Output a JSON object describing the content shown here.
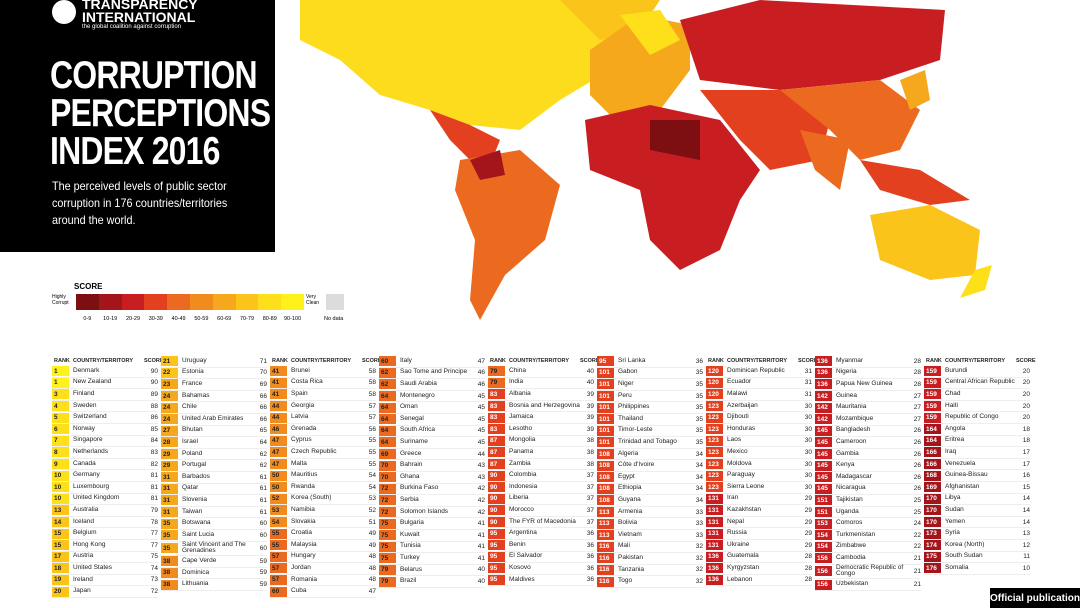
{
  "header": {
    "logo_name": "TRANSPARENCY INTERNATIONAL",
    "logo_tagline": "the global coalition against corruption",
    "title_lines": [
      "CORRUPTION",
      "PERCEPTIONS",
      "INDEX 2016"
    ],
    "subtitle": "The perceived levels of public sector corruption in 176 countries/territories around the world."
  },
  "legend": {
    "title": "SCORE",
    "low_label": "Highly Corrupt",
    "high_label": "Very Clean",
    "no_data": "No data",
    "no_data_color": "#dcdcdc",
    "bins": [
      {
        "label": "0-9",
        "color": "#7d0f12"
      },
      {
        "label": "10-19",
        "color": "#a3151b"
      },
      {
        "label": "20-29",
        "color": "#c81d21"
      },
      {
        "label": "30-39",
        "color": "#e2401f"
      },
      {
        "label": "40-49",
        "color": "#ec6a1f"
      },
      {
        "label": "50-59",
        "color": "#f28b1d"
      },
      {
        "label": "60-69",
        "color": "#f6a81c"
      },
      {
        "label": "70-79",
        "color": "#fac41b"
      },
      {
        "label": "80-89",
        "color": "#fde01a"
      },
      {
        "label": "90-100",
        "color": "#fff21c"
      }
    ]
  },
  "table": {
    "headers": [
      "RANK",
      "COUNTRY/TERRITORY",
      "SCORE"
    ],
    "columns": [
      [
        [
          1,
          "Denmark",
          90
        ],
        [
          1,
          "New Zealand",
          90
        ],
        [
          3,
          "Finland",
          89
        ],
        [
          4,
          "Sweden",
          88
        ],
        [
          5,
          "Switzerland",
          86
        ],
        [
          6,
          "Norway",
          85
        ],
        [
          7,
          "Singapore",
          84
        ],
        [
          8,
          "Netherlands",
          83
        ],
        [
          9,
          "Canada",
          82
        ],
        [
          10,
          "Germany",
          81
        ],
        [
          10,
          "Luxembourg",
          81
        ],
        [
          10,
          "United Kingdom",
          81
        ],
        [
          13,
          "Australia",
          79
        ],
        [
          14,
          "Iceland",
          78
        ],
        [
          15,
          "Belgium",
          77
        ],
        [
          15,
          "Hong Kong",
          77
        ],
        [
          17,
          "Austria",
          75
        ],
        [
          18,
          "United States",
          74
        ],
        [
          19,
          "Ireland",
          73
        ],
        [
          20,
          "Japan",
          72
        ]
      ],
      [
        [
          21,
          "Uruguay",
          71
        ],
        [
          22,
          "Estonia",
          70
        ],
        [
          23,
          "France",
          69
        ],
        [
          24,
          "Bahamas",
          66
        ],
        [
          24,
          "Chile",
          66
        ],
        [
          24,
          "United Arab Emirates",
          66
        ],
        [
          27,
          "Bhutan",
          65
        ],
        [
          28,
          "Israel",
          64
        ],
        [
          29,
          "Poland",
          62
        ],
        [
          29,
          "Portugal",
          62
        ],
        [
          31,
          "Barbados",
          61
        ],
        [
          31,
          "Qatar",
          61
        ],
        [
          31,
          "Slovenia",
          61
        ],
        [
          31,
          "Taiwan",
          61
        ],
        [
          35,
          "Botswana",
          60
        ],
        [
          35,
          "Saint Lucia",
          60
        ],
        [
          35,
          "Saint Vincent and The Grenadines",
          60
        ],
        [
          38,
          "Cape Verde",
          59
        ],
        [
          38,
          "Dominica",
          59
        ],
        [
          38,
          "Lithuania",
          59
        ]
      ],
      [
        [
          41,
          "Brunei",
          58
        ],
        [
          41,
          "Costa Rica",
          58
        ],
        [
          41,
          "Spain",
          58
        ],
        [
          44,
          "Georgia",
          57
        ],
        [
          44,
          "Latvia",
          57
        ],
        [
          46,
          "Grenada",
          56
        ],
        [
          47,
          "Cyprus",
          55
        ],
        [
          47,
          "Czech Republic",
          55
        ],
        [
          47,
          "Malta",
          55
        ],
        [
          50,
          "Mauritius",
          54
        ],
        [
          50,
          "Rwanda",
          54
        ],
        [
          52,
          "Korea (South)",
          53
        ],
        [
          53,
          "Namibia",
          52
        ],
        [
          54,
          "Slovakia",
          51
        ],
        [
          55,
          "Croatia",
          49
        ],
        [
          55,
          "Malaysia",
          49
        ],
        [
          57,
          "Hungary",
          48
        ],
        [
          57,
          "Jordan",
          48
        ],
        [
          57,
          "Romania",
          48
        ],
        [
          60,
          "Cuba",
          47
        ]
      ],
      [
        [
          60,
          "Italy",
          47
        ],
        [
          62,
          "Sao Tome and Principe",
          46
        ],
        [
          62,
          "Saudi Arabia",
          46
        ],
        [
          64,
          "Montenegro",
          45
        ],
        [
          64,
          "Oman",
          45
        ],
        [
          64,
          "Senegal",
          45
        ],
        [
          64,
          "South Africa",
          45
        ],
        [
          64,
          "Suriname",
          45
        ],
        [
          69,
          "Greece",
          44
        ],
        [
          70,
          "Bahrain",
          43
        ],
        [
          70,
          "Ghana",
          43
        ],
        [
          72,
          "Burkina Faso",
          42
        ],
        [
          72,
          "Serbia",
          42
        ],
        [
          72,
          "Solomon Islands",
          42
        ],
        [
          75,
          "Bulgaria",
          41
        ],
        [
          75,
          "Kuwait",
          41
        ],
        [
          75,
          "Tunisia",
          41
        ],
        [
          75,
          "Turkey",
          41
        ],
        [
          79,
          "Belarus",
          40
        ],
        [
          79,
          "Brazil",
          40
        ]
      ],
      [
        [
          79,
          "China",
          40
        ],
        [
          79,
          "India",
          40
        ],
        [
          83,
          "Albania",
          39
        ],
        [
          83,
          "Bosnia and Herzegovina",
          39
        ],
        [
          83,
          "Jamaica",
          39
        ],
        [
          83,
          "Lesotho",
          39
        ],
        [
          87,
          "Mongolia",
          38
        ],
        [
          87,
          "Panama",
          38
        ],
        [
          87,
          "Zambia",
          38
        ],
        [
          90,
          "Colombia",
          37
        ],
        [
          90,
          "Indonesia",
          37
        ],
        [
          90,
          "Liberia",
          37
        ],
        [
          90,
          "Morocco",
          37
        ],
        [
          90,
          "The FYR of Macedonia",
          37
        ],
        [
          95,
          "Argentina",
          36
        ],
        [
          95,
          "Benin",
          36
        ],
        [
          95,
          "El Salvador",
          36
        ],
        [
          95,
          "Kosovo",
          36
        ],
        [
          95,
          "Maldives",
          36
        ]
      ],
      [
        [
          95,
          "Sri Lanka",
          36
        ],
        [
          101,
          "Gabon",
          35
        ],
        [
          101,
          "Niger",
          35
        ],
        [
          101,
          "Peru",
          35
        ],
        [
          101,
          "Philippines",
          35
        ],
        [
          101,
          "Thailand",
          35
        ],
        [
          101,
          "Timor-Leste",
          35
        ],
        [
          101,
          "Trinidad and Tobago",
          35
        ],
        [
          108,
          "Algeria",
          34
        ],
        [
          108,
          "Côte d'Ivoire",
          34
        ],
        [
          108,
          "Egypt",
          34
        ],
        [
          108,
          "Ethiopia",
          34
        ],
        [
          108,
          "Guyana",
          34
        ],
        [
          113,
          "Armenia",
          33
        ],
        [
          113,
          "Bolivia",
          33
        ],
        [
          113,
          "Vietnam",
          33
        ],
        [
          116,
          "Mali",
          32
        ],
        [
          116,
          "Pakistan",
          32
        ],
        [
          116,
          "Tanzania",
          32
        ],
        [
          116,
          "Togo",
          32
        ]
      ],
      [
        [
          120,
          "Dominican Republic",
          31
        ],
        [
          120,
          "Ecuador",
          31
        ],
        [
          120,
          "Malawi",
          31
        ],
        [
          123,
          "Azerbaijan",
          30
        ],
        [
          123,
          "Djibouti",
          30
        ],
        [
          123,
          "Honduras",
          30
        ],
        [
          123,
          "Laos",
          30
        ],
        [
          123,
          "Mexico",
          30
        ],
        [
          123,
          "Moldova",
          30
        ],
        [
          123,
          "Paraguay",
          30
        ],
        [
          123,
          "Sierra Leone",
          30
        ],
        [
          131,
          "Iran",
          29
        ],
        [
          131,
          "Kazakhstan",
          29
        ],
        [
          131,
          "Nepal",
          29
        ],
        [
          131,
          "Russia",
          29
        ],
        [
          131,
          "Ukraine",
          29
        ],
        [
          136,
          "Guatemala",
          28
        ],
        [
          136,
          "Kyrgyzstan",
          28
        ],
        [
          136,
          "Lebanon",
          28
        ]
      ],
      [
        [
          136,
          "Myanmar",
          28
        ],
        [
          136,
          "Nigeria",
          28
        ],
        [
          136,
          "Papua New Guinea",
          28
        ],
        [
          142,
          "Guinea",
          27
        ],
        [
          142,
          "Mauritania",
          27
        ],
        [
          142,
          "Mozambique",
          27
        ],
        [
          145,
          "Bangladesh",
          26
        ],
        [
          145,
          "Cameroon",
          26
        ],
        [
          145,
          "Gambia",
          26
        ],
        [
          145,
          "Kenya",
          26
        ],
        [
          145,
          "Madagascar",
          26
        ],
        [
          145,
          "Nicaragua",
          26
        ],
        [
          151,
          "Tajikistan",
          25
        ],
        [
          151,
          "Uganda",
          25
        ],
        [
          153,
          "Comoros",
          24
        ],
        [
          154,
          "Turkmenistan",
          22
        ],
        [
          154,
          "Zimbabwe",
          22
        ],
        [
          156,
          "Cambodia",
          21
        ],
        [
          156,
          "Democratic Republic of Congo",
          21
        ],
        [
          156,
          "Uzbekistan",
          21
        ]
      ],
      [
        [
          159,
          "Burundi",
          20
        ],
        [
          159,
          "Central African Republic",
          20
        ],
        [
          159,
          "Chad",
          20
        ],
        [
          159,
          "Haiti",
          20
        ],
        [
          159,
          "Republic of Congo",
          20
        ],
        [
          164,
          "Angola",
          18
        ],
        [
          164,
          "Eritrea",
          18
        ],
        [
          166,
          "Iraq",
          17
        ],
        [
          166,
          "Venezuela",
          17
        ],
        [
          168,
          "Guinea-Bissau",
          16
        ],
        [
          169,
          "Afghanistan",
          15
        ],
        [
          170,
          "Libya",
          14
        ],
        [
          170,
          "Sudan",
          14
        ],
        [
          170,
          "Yemen",
          14
        ],
        [
          173,
          "Syria",
          13
        ],
        [
          174,
          "Korea (North)",
          12
        ],
        [
          175,
          "South Sudan",
          11
        ],
        [
          176,
          "Somalia",
          10
        ]
      ]
    ]
  },
  "badge": "Official publication"
}
